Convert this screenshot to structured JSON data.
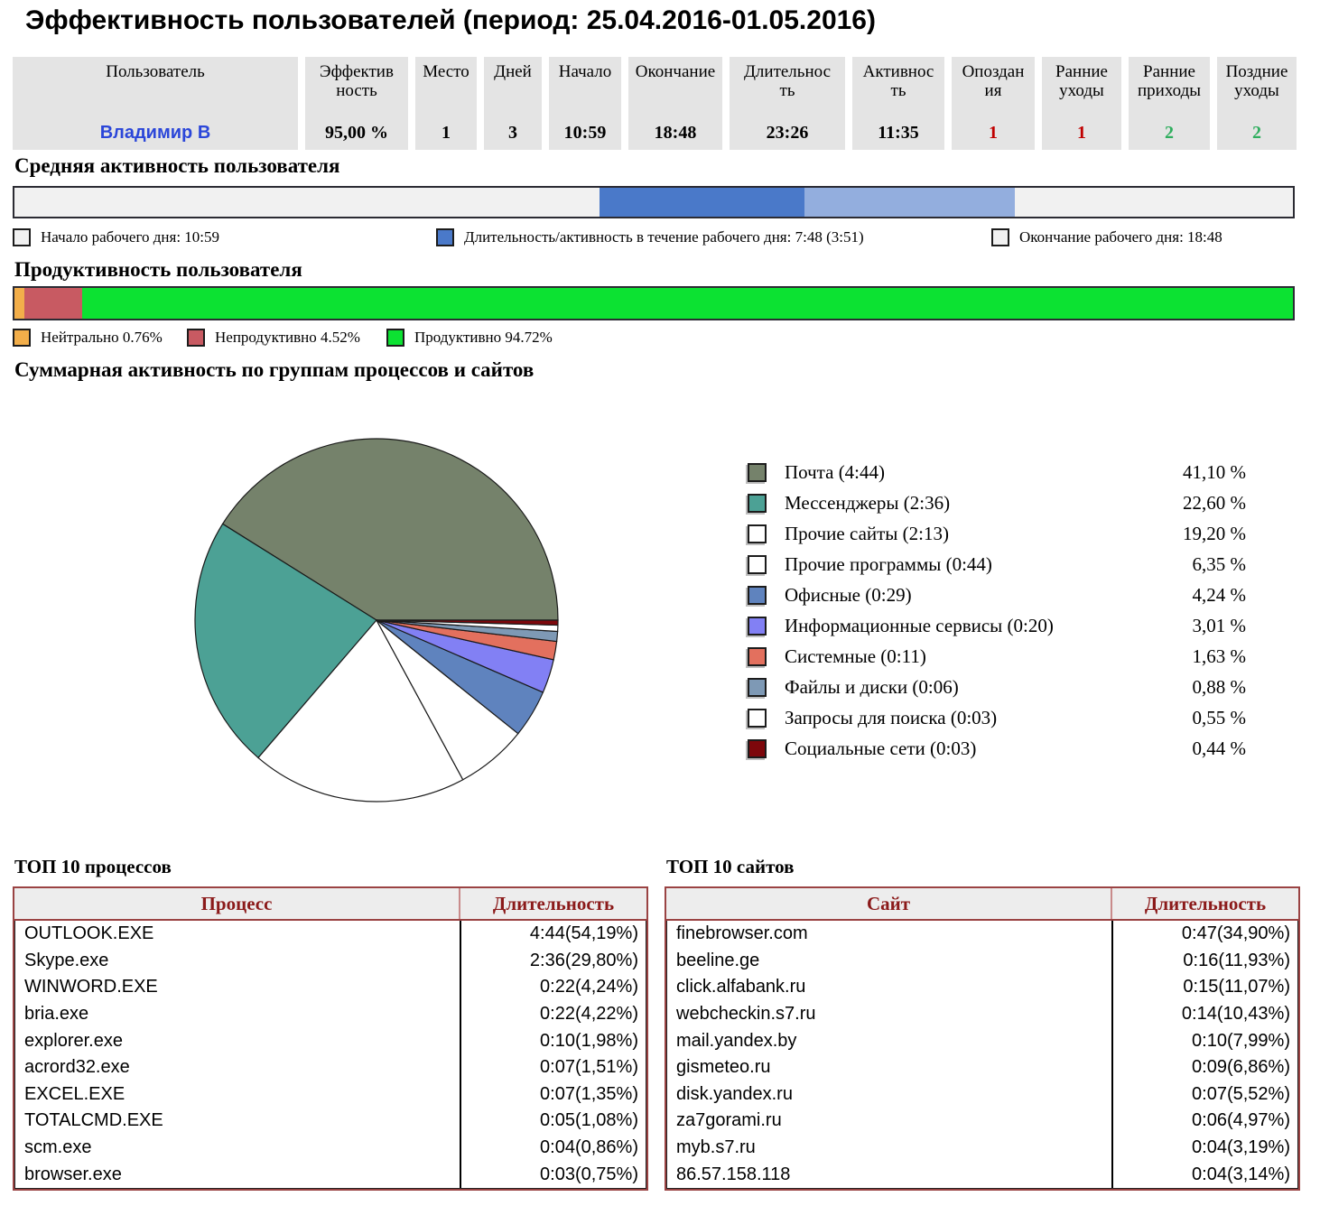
{
  "page_title": "Эффективность пользователей (период: 25.04.2016-01.05.2016)",
  "summary_table": {
    "columns": [
      {
        "label": "Пользователь",
        "value": "Владимир В",
        "link": true
      },
      {
        "label": "Эффектив\nность",
        "value": "95,00 %"
      },
      {
        "label": "Место",
        "value": "1"
      },
      {
        "label": "Дней",
        "value": "3"
      },
      {
        "label": "Начало",
        "value": "10:59"
      },
      {
        "label": "Окончание",
        "value": "18:48"
      },
      {
        "label": "Длительнос\nть",
        "value": "23:26"
      },
      {
        "label": "Активнос\nть",
        "value": "11:35"
      },
      {
        "label": "Опоздан\nия",
        "value": "1",
        "value_color": "#c00000"
      },
      {
        "label": "Ранние\nуходы",
        "value": "1",
        "value_color": "#c00000"
      },
      {
        "label": "Ранние\nприходы",
        "value": "2",
        "value_color": "#2fae5e"
      },
      {
        "label": "Поздние\nуходы",
        "value": "2",
        "value_color": "#2fae5e"
      }
    ]
  },
  "activity_section": {
    "heading": "Средняя активность пользователя",
    "legend": [
      {
        "label": "Начало рабочего дня: 10:59",
        "swatch_color": "#f1f1f1"
      },
      {
        "label": "Длительность/активность в течение рабочего дня: 7:48 (3:51)",
        "swatch_color": "#4a79c9"
      },
      {
        "label": "Окончание рабочего дня: 18:48",
        "swatch_color": "#f1f1f1"
      }
    ]
  },
  "productivity_section": {
    "heading": "Продуктивность пользователя",
    "legend": [
      {
        "label": "Нейтрально 0.76%",
        "swatch_color": "#f2ae4a"
      },
      {
        "label": "Непродуктивно 4.52%",
        "swatch_color": "#c85a62"
      },
      {
        "label": "Продуктивно 94.72%",
        "swatch_color": "#0ce232"
      }
    ]
  },
  "pie_section": {
    "heading": "Суммарная активность по группам процессов и сайтов"
  },
  "top_processes": {
    "title": "ТОП 10 процессов",
    "headers": [
      "Процесс",
      "Длительность"
    ],
    "rows": [
      [
        "OUTLOOK.EXE",
        "4:44(54,19%)"
      ],
      [
        "Skype.exe",
        "2:36(29,80%)"
      ],
      [
        "WINWORD.EXE",
        "0:22(4,24%)"
      ],
      [
        "bria.exe",
        "0:22(4,22%)"
      ],
      [
        "explorer.exe",
        "0:10(1,98%)"
      ],
      [
        "acrord32.exe",
        "0:07(1,51%)"
      ],
      [
        "EXCEL.EXE",
        "0:07(1,35%)"
      ],
      [
        "TOTALCMD.EXE",
        "0:05(1,08%)"
      ],
      [
        "scm.exe",
        "0:04(0,86%)"
      ],
      [
        "browser.exe",
        "0:03(0,75%)"
      ]
    ]
  },
  "top_sites": {
    "title": "ТОП 10 сайтов",
    "headers": [
      "Сайт",
      "Длительность"
    ],
    "rows": [
      [
        "finebrowser.com",
        "0:47(34,90%)"
      ],
      [
        "beeline.ge",
        "0:16(11,93%)"
      ],
      [
        "click.alfabank.ru",
        "0:15(11,07%)"
      ],
      [
        "webcheckin.s7.ru",
        "0:14(10,43%)"
      ],
      [
        "mail.yandex.by",
        "0:10(7,99%)"
      ],
      [
        "gismeteo.ru",
        "0:09(6,86%)"
      ],
      [
        "disk.yandex.ru",
        "0:07(5,52%)"
      ],
      [
        "za7gorami.ru",
        "0:06(4,97%)"
      ],
      [
        "myb.s7.ru",
        "0:04(3,19%)"
      ],
      [
        "86.57.158.118",
        "0:04(3,14%)"
      ]
    ]
  },
  "chart_data": [
    {
      "type": "bar",
      "title": "Средняя активность пользователя",
      "timeline_hours": [
        0,
        24
      ],
      "work_start": "10:59",
      "work_end": "18:48",
      "work_duration": "7:48",
      "active_time": "3:51",
      "colors": {
        "workday_active": "#4a79c9",
        "workday_rest": "#93aede",
        "background": "#f1f1f1"
      }
    },
    {
      "type": "bar",
      "title": "Продуктивность пользователя",
      "categories": [
        "Нейтрально",
        "Непродуктивно",
        "Продуктивно"
      ],
      "values": [
        0.76,
        4.52,
        94.72
      ],
      "colors": [
        "#f2ae4a",
        "#c85a62",
        "#0ce232"
      ],
      "xlim": [
        0,
        100
      ]
    },
    {
      "type": "pie",
      "title": "Суммарная активность по группам процессов и сайтов",
      "start_angle_deg": 0,
      "direction": "counterclockwise",
      "legend_position": "right",
      "slices": [
        {
          "label": "Почта",
          "time": "4:44",
          "pct": 41.1,
          "legend_label": "Почта (4:44)",
          "pct_label": "41,10 %",
          "color": "#75826b"
        },
        {
          "label": "Мессенджеры",
          "time": "2:36",
          "pct": 22.6,
          "legend_label": "Мессенджеры (2:36)",
          "pct_label": "22,60 %",
          "color": "#4ca195"
        },
        {
          "label": "Прочие сайты",
          "time": "2:13",
          "pct": 19.2,
          "legend_label": "Прочие сайты (2:13)",
          "pct_label": "19,20 %",
          "color": "#ffffff"
        },
        {
          "label": "Прочие программы",
          "time": "0:44",
          "pct": 6.35,
          "legend_label": "Прочие программы (0:44)",
          "pct_label": "6,35 %",
          "color": "#ffffff"
        },
        {
          "label": "Офисные",
          "time": "0:29",
          "pct": 4.24,
          "legend_label": "Офисные (0:29)",
          "pct_label": "4,24 %",
          "color": "#5f83be"
        },
        {
          "label": "Информационные сервисы",
          "time": "0:20",
          "pct": 3.01,
          "legend_label": "Информационные сервисы (0:20)",
          "pct_label": "3,01 %",
          "color": "#8280f4"
        },
        {
          "label": "Системные",
          "time": "0:11",
          "pct": 1.63,
          "legend_label": "Системные (0:11)",
          "pct_label": "1,63 %",
          "color": "#e3705e"
        },
        {
          "label": "Файлы и диски",
          "time": "0:06",
          "pct": 0.88,
          "legend_label": "Файлы и диски (0:06)",
          "pct_label": "0,88 %",
          "color": "#7e99b5"
        },
        {
          "label": "Запросы для поиска",
          "time": "0:03",
          "pct": 0.55,
          "legend_label": "Запросы для поиска (0:03)",
          "pct_label": "0,55 %",
          "color": "#ffffff"
        },
        {
          "label": "Социальные сети",
          "time": "0:03",
          "pct": 0.44,
          "legend_label": "Социальные сети (0:03)",
          "pct_label": "0,44 %",
          "color": "#7d070b"
        }
      ]
    }
  ]
}
